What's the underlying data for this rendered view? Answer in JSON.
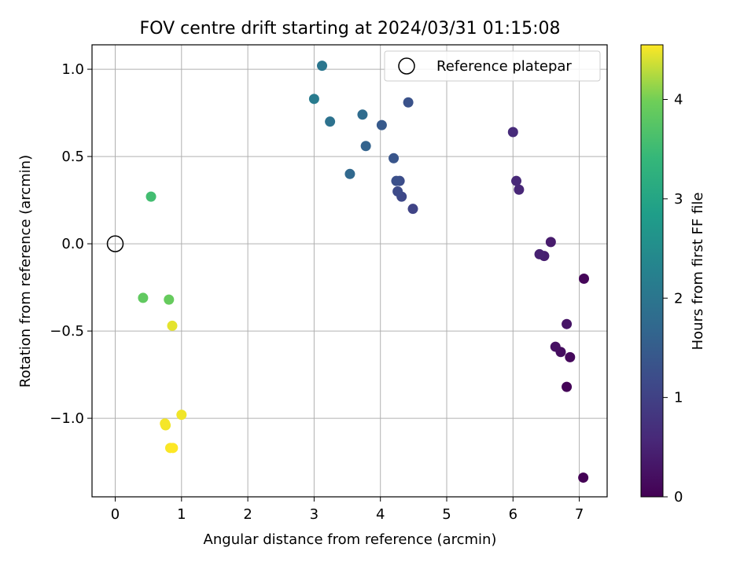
{
  "chart_data": {
    "type": "scatter",
    "title": "FOV centre drift starting at 2024/03/31 01:15:08",
    "xlabel": "Angular distance from reference (arcmin)",
    "ylabel": "Rotation from reference (arcmin)",
    "xlim": [
      -0.35,
      7.42
    ],
    "ylim": [
      -1.45,
      1.14
    ],
    "xticks": [
      0,
      1,
      2,
      3,
      4,
      5,
      6,
      7
    ],
    "xtick_labels": [
      "0",
      "1",
      "2",
      "3",
      "4",
      "5",
      "6",
      "7"
    ],
    "yticks": [
      -1.0,
      -0.5,
      0.0,
      0.5,
      1.0
    ],
    "ytick_labels": [
      "−1.0",
      "−0.5",
      "0.0",
      "0.5",
      "1.0"
    ],
    "grid": true,
    "legend": {
      "location": "upper right",
      "entries": [
        "Reference platepar"
      ]
    },
    "reference_point": {
      "x": 0.0,
      "y": 0.0,
      "label": "Reference platepar"
    },
    "colorbar": {
      "label": "Hours from first FF file",
      "colormap": "viridis",
      "range": [
        0,
        4.55
      ],
      "ticks": [
        0,
        1,
        2,
        3,
        4
      ],
      "tick_labels": [
        "0",
        "1",
        "2",
        "3",
        "4"
      ]
    },
    "points": [
      {
        "x": 7.06,
        "y": -1.34,
        "hours": 0.02
      },
      {
        "x": 6.81,
        "y": -0.82,
        "hours": 0.05
      },
      {
        "x": 7.07,
        "y": -0.2,
        "hours": 0.08
      },
      {
        "x": 6.86,
        "y": -0.65,
        "hours": 0.12
      },
      {
        "x": 6.72,
        "y": -0.62,
        "hours": 0.18
      },
      {
        "x": 6.64,
        "y": -0.59,
        "hours": 0.22
      },
      {
        "x": 6.81,
        "y": -0.46,
        "hours": 0.28
      },
      {
        "x": 6.57,
        "y": 0.01,
        "hours": 0.38
      },
      {
        "x": 6.47,
        "y": -0.07,
        "hours": 0.42
      },
      {
        "x": 6.4,
        "y": -0.06,
        "hours": 0.46
      },
      {
        "x": 6.09,
        "y": 0.31,
        "hours": 0.55
      },
      {
        "x": 6.05,
        "y": 0.36,
        "hours": 0.58
      },
      {
        "x": 6.0,
        "y": 0.64,
        "hours": 0.62
      },
      {
        "x": 4.49,
        "y": 0.2,
        "hours": 1.05
      },
      {
        "x": 4.32,
        "y": 0.27,
        "hours": 1.12
      },
      {
        "x": 4.26,
        "y": 0.3,
        "hours": 1.18
      },
      {
        "x": 4.29,
        "y": 0.36,
        "hours": 1.22
      },
      {
        "x": 4.24,
        "y": 0.36,
        "hours": 1.26
      },
      {
        "x": 4.42,
        "y": 0.81,
        "hours": 1.3
      },
      {
        "x": 4.2,
        "y": 0.49,
        "hours": 1.36
      },
      {
        "x": 4.02,
        "y": 0.68,
        "hours": 1.45
      },
      {
        "x": 3.78,
        "y": 0.56,
        "hours": 1.62
      },
      {
        "x": 3.54,
        "y": 0.4,
        "hours": 1.72
      },
      {
        "x": 3.73,
        "y": 0.74,
        "hours": 1.8
      },
      {
        "x": 3.24,
        "y": 0.7,
        "hours": 1.92
      },
      {
        "x": 3.12,
        "y": 1.02,
        "hours": 2.02
      },
      {
        "x": 3.0,
        "y": 0.83,
        "hours": 2.12
      },
      {
        "x": 0.54,
        "y": 0.27,
        "hours": 3.55
      },
      {
        "x": 0.42,
        "y": -0.31,
        "hours": 3.85
      },
      {
        "x": 0.81,
        "y": -0.32,
        "hours": 3.9
      },
      {
        "x": 0.86,
        "y": -0.47,
        "hours": 4.45
      },
      {
        "x": 1.0,
        "y": -0.98,
        "hours": 4.5
      },
      {
        "x": 0.76,
        "y": -1.04,
        "hours": 4.5
      },
      {
        "x": 0.75,
        "y": -1.03,
        "hours": 4.52
      },
      {
        "x": 0.83,
        "y": -1.17,
        "hours": 4.53
      },
      {
        "x": 0.87,
        "y": -1.17,
        "hours": 4.55
      }
    ]
  }
}
